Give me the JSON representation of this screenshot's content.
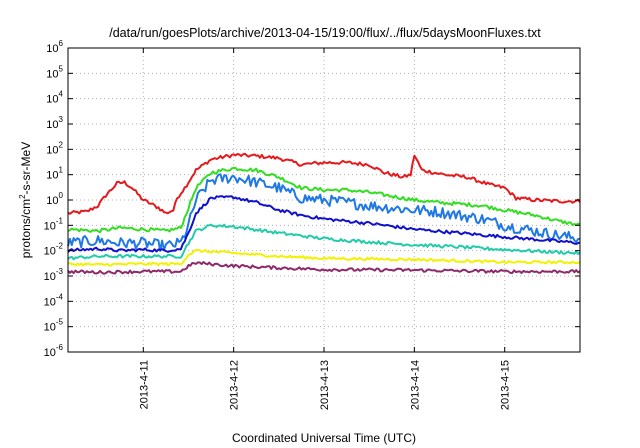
{
  "chart_data": {
    "type": "line",
    "title": "/data/run/goesPlots/archive/2013-04-15/19:00/flux/../flux/5daysMoonFluxes.txt",
    "xlabel": "Coordinated Universal Time (UTC)",
    "ylabel": "protons/cm2-s-sr-MeV",
    "ylabel_parts": {
      "pre": "protons/cm",
      "sup": "2",
      "post": "-s-sr-MeV"
    },
    "x_scale": "time",
    "x_start": "2013-04-10T04:00",
    "x_end": "2013-04-15T20:00",
    "xlim": [
      "2013-04-10T04:00",
      "2013-04-15T20:00"
    ],
    "x_ticks": [
      {
        "value": "2013-04-11T00:00",
        "label": "2013-4-11"
      },
      {
        "value": "2013-04-12T00:00",
        "label": "2013-4-12"
      },
      {
        "value": "2013-04-13T00:00",
        "label": "2013-4-13"
      },
      {
        "value": "2013-04-14T00:00",
        "label": "2013-4-14"
      },
      {
        "value": "2013-04-15T00:00",
        "label": "2013-4-15"
      }
    ],
    "y_scale": "log",
    "ylim": [
      1e-06,
      1000000.0
    ],
    "y_ticks": [
      {
        "value": 1000000.0,
        "base": "10",
        "exp": "6"
      },
      {
        "value": 100000.0,
        "base": "10",
        "exp": "5"
      },
      {
        "value": 10000.0,
        "base": "10",
        "exp": "4"
      },
      {
        "value": 1000.0,
        "base": "10",
        "exp": "3"
      },
      {
        "value": 100.0,
        "base": "10",
        "exp": "2"
      },
      {
        "value": 10.0,
        "base": "10",
        "exp": "1"
      },
      {
        "value": 1.0,
        "base": "10",
        "exp": "0"
      },
      {
        "value": 0.1,
        "base": "10",
        "exp": "-1"
      },
      {
        "value": 0.01,
        "base": "10",
        "exp": "-2"
      },
      {
        "value": 0.001,
        "base": "10",
        "exp": "-3"
      },
      {
        "value": 0.0001,
        "base": "10",
        "exp": "-4"
      },
      {
        "value": 1e-05,
        "base": "10",
        "exp": "-5"
      },
      {
        "value": 1e-06,
        "base": "10",
        "exp": "-6"
      }
    ],
    "grid": true,
    "series": [
      {
        "color": "#e41a1c",
        "noise": 0.07,
        "points": [
          [
            "2013-04-10T04:00",
            0.3
          ],
          [
            "2013-04-10T09:00",
            0.35
          ],
          [
            "2013-04-10T12:00",
            0.6
          ],
          [
            "2013-04-10T14:00",
            1.5
          ],
          [
            "2013-04-10T17:00",
            4.5
          ],
          [
            "2013-04-10T19:00",
            5.0
          ],
          [
            "2013-04-10T21:00",
            3.0
          ],
          [
            "2013-04-11T00:00",
            1.0
          ],
          [
            "2013-04-11T04:00",
            0.5
          ],
          [
            "2013-04-11T06:00",
            0.3
          ],
          [
            "2013-04-11T08:00",
            0.4
          ],
          [
            "2013-04-11T09:00",
            1.2
          ],
          [
            "2013-04-11T11:00",
            3.0
          ],
          [
            "2013-04-11T14:00",
            15
          ],
          [
            "2013-04-11T18:00",
            40
          ],
          [
            "2013-04-12T00:00",
            60
          ],
          [
            "2013-04-12T06:00",
            55
          ],
          [
            "2013-04-12T12:00",
            45
          ],
          [
            "2013-04-12T18:00",
            25
          ],
          [
            "2013-04-13T00:00",
            30
          ],
          [
            "2013-04-13T06:00",
            30
          ],
          [
            "2013-04-13T12:00",
            25
          ],
          [
            "2013-04-13T16:00",
            12
          ],
          [
            "2013-04-13T21:00",
            8
          ],
          [
            "2013-04-13T23:00",
            10
          ],
          [
            "2013-04-14T00:00",
            60
          ],
          [
            "2013-04-14T02:00",
            15
          ],
          [
            "2013-04-14T08:00",
            10
          ],
          [
            "2013-04-14T14:00",
            8
          ],
          [
            "2013-04-14T20:00",
            4
          ],
          [
            "2013-04-15T00:00",
            3
          ],
          [
            "2013-04-15T03:00",
            1.2
          ],
          [
            "2013-04-15T08:00",
            1.0
          ],
          [
            "2013-04-15T14:00",
            0.9
          ],
          [
            "2013-04-15T20:00",
            0.9
          ]
        ]
      },
      {
        "color": "#33dd22",
        "noise": 0.07,
        "points": [
          [
            "2013-04-10T04:00",
            0.07
          ],
          [
            "2013-04-10T12:00",
            0.06
          ],
          [
            "2013-04-10T18:00",
            0.08
          ],
          [
            "2013-04-11T00:00",
            0.07
          ],
          [
            "2013-04-11T06:00",
            0.06
          ],
          [
            "2013-04-11T10:00",
            0.08
          ],
          [
            "2013-04-11T12:00",
            0.5
          ],
          [
            "2013-04-11T14:00",
            3
          ],
          [
            "2013-04-11T18:00",
            12
          ],
          [
            "2013-04-12T00:00",
            18
          ],
          [
            "2013-04-12T06:00",
            15
          ],
          [
            "2013-04-12T12:00",
            8
          ],
          [
            "2013-04-12T18:00",
            3
          ],
          [
            "2013-04-13T00:00",
            2.5
          ],
          [
            "2013-04-13T06:00",
            2.5
          ],
          [
            "2013-04-13T12:00",
            2
          ],
          [
            "2013-04-14T00:00",
            1.0
          ],
          [
            "2013-04-14T06:00",
            0.8
          ],
          [
            "2013-04-14T12:00",
            0.7
          ],
          [
            "2013-04-14T18:00",
            0.6
          ],
          [
            "2013-04-15T00:00",
            0.4
          ],
          [
            "2013-04-15T08:00",
            0.25
          ],
          [
            "2013-04-15T14:00",
            0.15
          ],
          [
            "2013-04-15T20:00",
            0.1
          ]
        ]
      },
      {
        "color": "#1f78e4",
        "noise": 0.22,
        "points": [
          [
            "2013-04-10T04:00",
            0.02
          ],
          [
            "2013-04-10T12:00",
            0.025
          ],
          [
            "2013-04-10T18:00",
            0.02
          ],
          [
            "2013-04-11T00:00",
            0.02
          ],
          [
            "2013-04-11T06:00",
            0.015
          ],
          [
            "2013-04-11T10:00",
            0.02
          ],
          [
            "2013-04-11T12:00",
            0.1
          ],
          [
            "2013-04-11T14:00",
            1
          ],
          [
            "2013-04-11T18:00",
            6
          ],
          [
            "2013-04-12T00:00",
            8
          ],
          [
            "2013-04-12T06:00",
            5
          ],
          [
            "2013-04-12T12:00",
            3
          ],
          [
            "2013-04-12T18:00",
            1.2
          ],
          [
            "2013-04-13T00:00",
            1.0
          ],
          [
            "2013-04-13T06:00",
            0.8
          ],
          [
            "2013-04-13T12:00",
            0.6
          ],
          [
            "2013-04-14T00:00",
            0.4
          ],
          [
            "2013-04-14T06:00",
            0.35
          ],
          [
            "2013-04-14T12:00",
            0.25
          ],
          [
            "2013-04-14T18:00",
            0.18
          ],
          [
            "2013-04-15T00:00",
            0.1
          ],
          [
            "2013-04-15T08:00",
            0.06
          ],
          [
            "2013-04-15T14:00",
            0.04
          ],
          [
            "2013-04-15T20:00",
            0.03
          ]
        ]
      },
      {
        "color": "#1111cc",
        "noise": 0.06,
        "points": [
          [
            "2013-04-10T04:00",
            0.01
          ],
          [
            "2013-04-10T12:00",
            0.012
          ],
          [
            "2013-04-10T18:00",
            0.01
          ],
          [
            "2013-04-11T00:00",
            0.011
          ],
          [
            "2013-04-11T06:00",
            0.01
          ],
          [
            "2013-04-11T10:00",
            0.012
          ],
          [
            "2013-04-11T12:00",
            0.05
          ],
          [
            "2013-04-11T14:00",
            0.3
          ],
          [
            "2013-04-11T18:00",
            1.2
          ],
          [
            "2013-04-12T00:00",
            1.3
          ],
          [
            "2013-04-12T06:00",
            0.8
          ],
          [
            "2013-04-12T12:00",
            0.4
          ],
          [
            "2013-04-12T18:00",
            0.25
          ],
          [
            "2013-04-13T00:00",
            0.18
          ],
          [
            "2013-04-13T12:00",
            0.12
          ],
          [
            "2013-04-14T00:00",
            0.07
          ],
          [
            "2013-04-14T12:00",
            0.05
          ],
          [
            "2013-04-15T00:00",
            0.035
          ],
          [
            "2013-04-15T12:00",
            0.025
          ],
          [
            "2013-04-15T20:00",
            0.02
          ]
        ]
      },
      {
        "color": "#22ccaa",
        "noise": 0.06,
        "points": [
          [
            "2013-04-10T04:00",
            0.005
          ],
          [
            "2013-04-10T12:00",
            0.006
          ],
          [
            "2013-04-11T00:00",
            0.006
          ],
          [
            "2013-04-11T10:00",
            0.006
          ],
          [
            "2013-04-11T12:00",
            0.02
          ],
          [
            "2013-04-11T14:00",
            0.06
          ],
          [
            "2013-04-11T18:00",
            0.1
          ],
          [
            "2013-04-12T00:00",
            0.09
          ],
          [
            "2013-04-12T12:00",
            0.05
          ],
          [
            "2013-04-13T00:00",
            0.03
          ],
          [
            "2013-04-13T12:00",
            0.022
          ],
          [
            "2013-04-14T00:00",
            0.017
          ],
          [
            "2013-04-14T12:00",
            0.014
          ],
          [
            "2013-04-15T00:00",
            0.011
          ],
          [
            "2013-04-15T12:00",
            0.009
          ],
          [
            "2013-04-15T20:00",
            0.008
          ]
        ]
      },
      {
        "color": "#f2f200",
        "noise": 0.05,
        "points": [
          [
            "2013-04-10T04:00",
            0.003
          ],
          [
            "2013-04-10T12:00",
            0.0028
          ],
          [
            "2013-04-11T00:00",
            0.003
          ],
          [
            "2013-04-11T10:00",
            0.003
          ],
          [
            "2013-04-11T12:00",
            0.007
          ],
          [
            "2013-04-11T14:00",
            0.01
          ],
          [
            "2013-04-12T00:00",
            0.008
          ],
          [
            "2013-04-12T12:00",
            0.006
          ],
          [
            "2013-04-13T00:00",
            0.005
          ],
          [
            "2013-04-14T00:00",
            0.0045
          ],
          [
            "2013-04-15T00:00",
            0.0035
          ],
          [
            "2013-04-15T20:00",
            0.0035
          ]
        ]
      },
      {
        "color": "#8e2a6a",
        "noise": 0.06,
        "points": [
          [
            "2013-04-10T04:00",
            0.0015
          ],
          [
            "2013-04-10T12:00",
            0.0014
          ],
          [
            "2013-04-11T00:00",
            0.0015
          ],
          [
            "2013-04-11T10:00",
            0.0015
          ],
          [
            "2013-04-11T12:00",
            0.0025
          ],
          [
            "2013-04-11T14:00",
            0.0033
          ],
          [
            "2013-04-12T00:00",
            0.0025
          ],
          [
            "2013-04-12T12:00",
            0.0021
          ],
          [
            "2013-04-13T00:00",
            0.0018
          ],
          [
            "2013-04-14T00:00",
            0.0017
          ],
          [
            "2013-04-15T00:00",
            0.0015
          ],
          [
            "2013-04-15T20:00",
            0.0015
          ]
        ]
      }
    ]
  }
}
